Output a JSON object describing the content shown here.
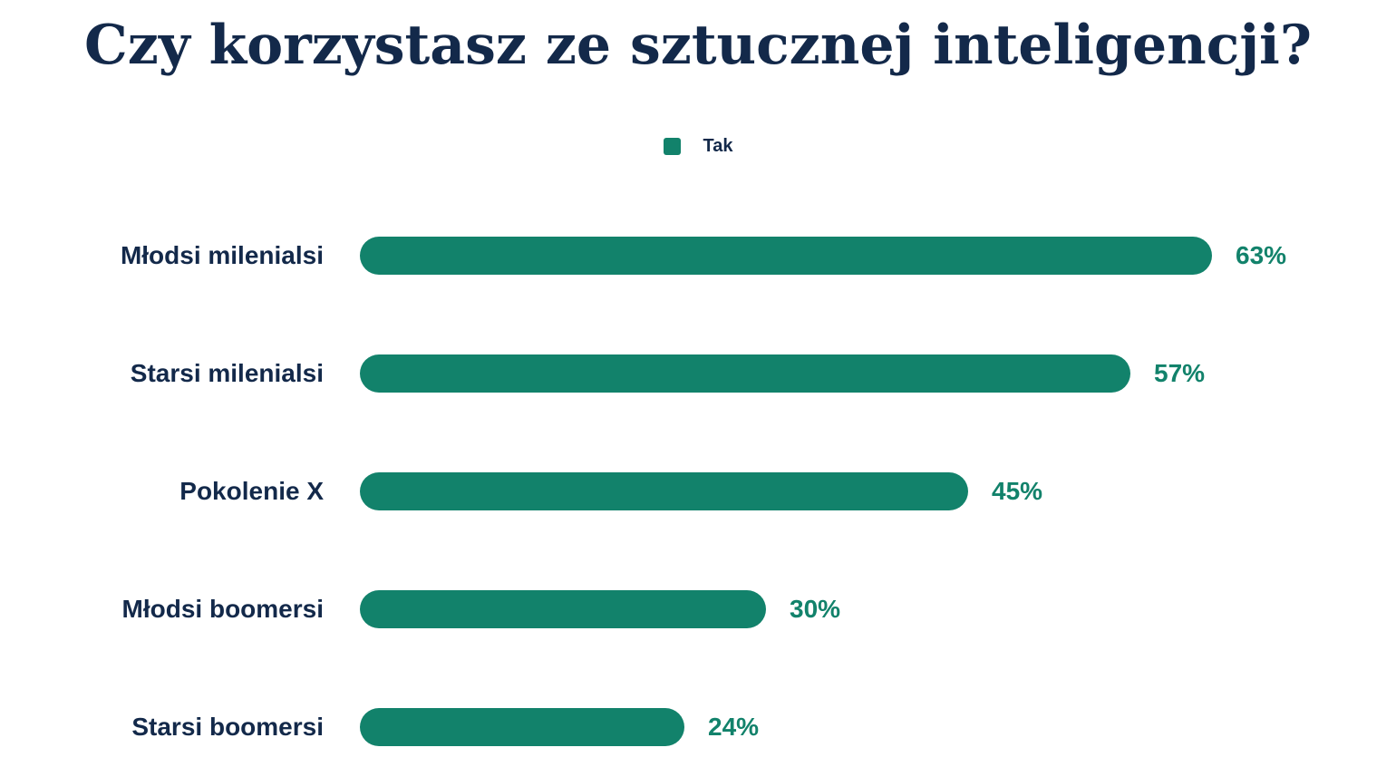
{
  "title": "Czy korzystasz ze sztucznej inteligencji?",
  "legend": {
    "items": [
      {
        "label": "Tak",
        "color": "#12826B"
      }
    ]
  },
  "chart_data": {
    "type": "bar",
    "orientation": "horizontal",
    "title": "Czy korzystasz ze sztucznej inteligencji?",
    "categories": [
      "Młodsi milenialsi",
      "Starsi milenialsi",
      "Pokolenie X",
      "Młodsi boomersi",
      "Starsi boomersi"
    ],
    "series": [
      {
        "name": "Tak",
        "values": [
          63,
          57,
          45,
          30,
          24
        ]
      }
    ],
    "value_labels": [
      "63%",
      "57%",
      "45%",
      "30%",
      "24%"
    ],
    "xlim": [
      0,
      63
    ],
    "grid": false,
    "axes_visible": false,
    "legend_position": "top-center",
    "colors": {
      "bar": "#12826B",
      "value_label": "#12826B",
      "category_label": "#13294A",
      "title": "#13294A",
      "background": "#FFFFFF"
    }
  }
}
